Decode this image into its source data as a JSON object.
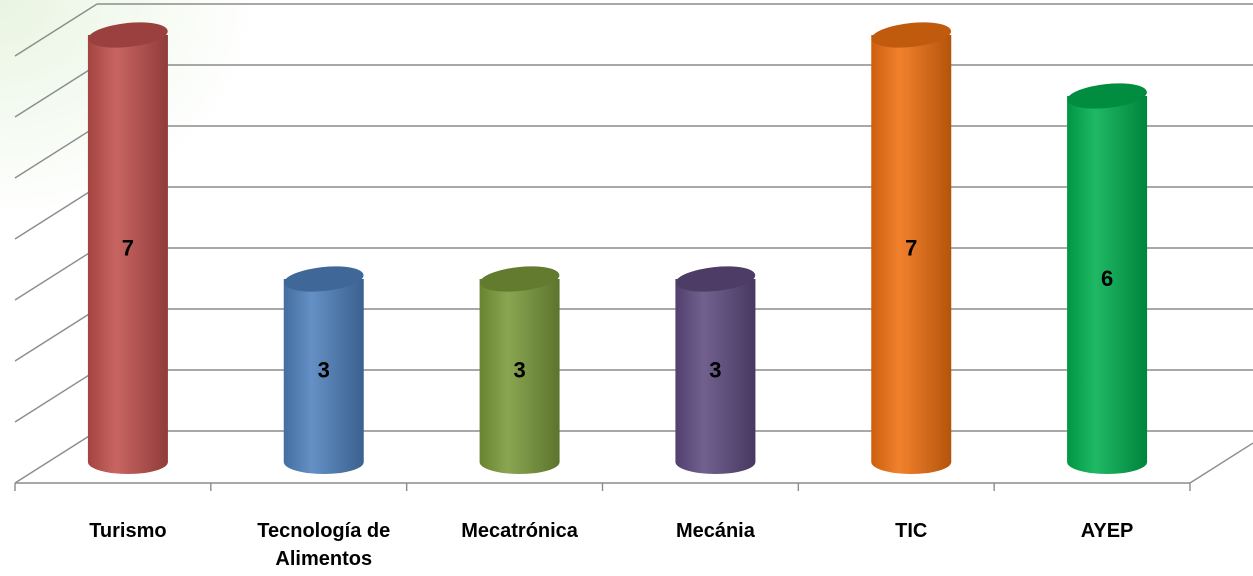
{
  "chart_data": {
    "type": "bar",
    "style": "3d-cylinder",
    "categories": [
      "Turismo",
      "Tecnología de\nAlimentos",
      "Mecatrónica",
      "Mecánia",
      "TIC",
      "AYEP"
    ],
    "values": [
      7,
      3,
      3,
      3,
      7,
      6
    ],
    "colors": [
      "#c0504d",
      "#4f81bd",
      "#7a9a3a",
      "#5f4b80",
      "#f07010",
      "#00b050"
    ],
    "ylim": [
      0,
      7
    ],
    "grid": true,
    "legend": "none",
    "title": "",
    "xlabel": "",
    "ylabel": ""
  }
}
